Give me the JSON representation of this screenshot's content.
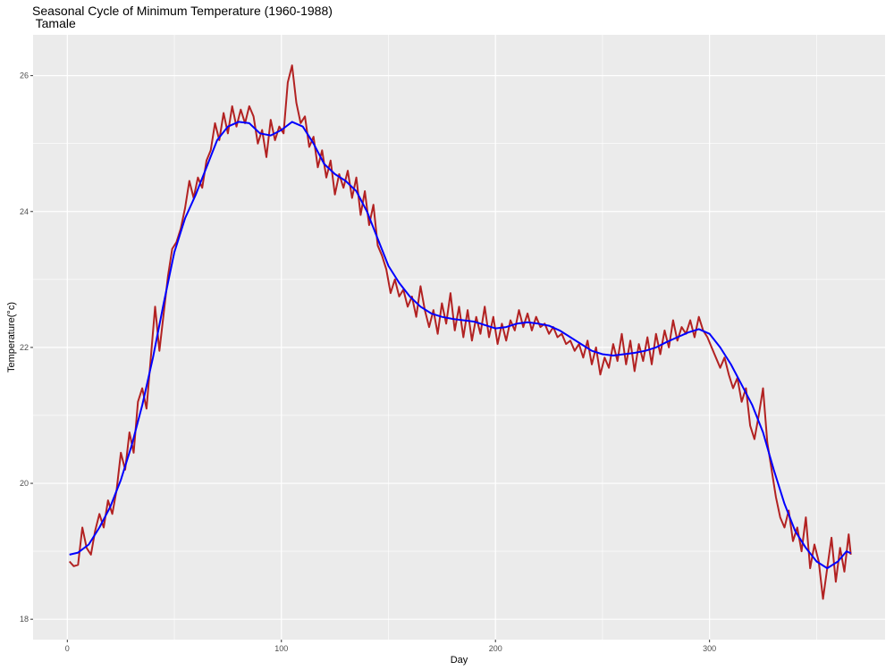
{
  "chart_data": {
    "type": "line",
    "title": "Seasonal Cycle of Minimum Temperature (1960-1988)",
    "subtitle": " Tamale",
    "xlabel": "Day",
    "ylabel": "Temperature(°c)",
    "xlim": [
      -16,
      382
    ],
    "ylim": [
      17.7,
      26.6
    ],
    "xticks": [
      0,
      100,
      200,
      300
    ],
    "yticks": [
      18,
      20,
      22,
      24,
      26
    ],
    "grid": true,
    "colors": {
      "panel": "#EBEBEB",
      "grid": "#FFFFFF",
      "daily": "#B22222",
      "smooth": "#0000FF"
    },
    "series": [
      {
        "key": "daily",
        "points": [
          [
            1,
            18.85
          ],
          [
            3,
            18.78
          ],
          [
            5,
            18.8
          ],
          [
            7,
            19.35
          ],
          [
            9,
            19.05
          ],
          [
            11,
            18.95
          ],
          [
            13,
            19.3
          ],
          [
            15,
            19.55
          ],
          [
            17,
            19.35
          ],
          [
            19,
            19.75
          ],
          [
            21,
            19.55
          ],
          [
            23,
            19.9
          ],
          [
            25,
            20.45
          ],
          [
            27,
            20.2
          ],
          [
            29,
            20.75
          ],
          [
            31,
            20.45
          ],
          [
            33,
            21.2
          ],
          [
            35,
            21.4
          ],
          [
            37,
            21.1
          ],
          [
            39,
            21.85
          ],
          [
            41,
            22.6
          ],
          [
            43,
            21.95
          ],
          [
            45,
            22.5
          ],
          [
            47,
            23.05
          ],
          [
            49,
            23.45
          ],
          [
            51,
            23.55
          ],
          [
            53,
            23.75
          ],
          [
            55,
            24.05
          ],
          [
            57,
            24.45
          ],
          [
            59,
            24.2
          ],
          [
            61,
            24.5
          ],
          [
            63,
            24.35
          ],
          [
            65,
            24.75
          ],
          [
            67,
            24.9
          ],
          [
            69,
            25.3
          ],
          [
            71,
            25.05
          ],
          [
            73,
            25.45
          ],
          [
            75,
            25.15
          ],
          [
            77,
            25.55
          ],
          [
            79,
            25.25
          ],
          [
            81,
            25.5
          ],
          [
            83,
            25.3
          ],
          [
            85,
            25.55
          ],
          [
            87,
            25.4
          ],
          [
            89,
            25.0
          ],
          [
            91,
            25.2
          ],
          [
            93,
            24.8
          ],
          [
            95,
            25.35
          ],
          [
            97,
            25.05
          ],
          [
            99,
            25.25
          ],
          [
            101,
            25.15
          ],
          [
            103,
            25.9
          ],
          [
            105,
            26.15
          ],
          [
            107,
            25.6
          ],
          [
            109,
            25.3
          ],
          [
            111,
            25.4
          ],
          [
            113,
            24.95
          ],
          [
            115,
            25.1
          ],
          [
            117,
            24.65
          ],
          [
            119,
            24.9
          ],
          [
            121,
            24.5
          ],
          [
            123,
            24.75
          ],
          [
            125,
            24.25
          ],
          [
            127,
            24.55
          ],
          [
            129,
            24.35
          ],
          [
            131,
            24.6
          ],
          [
            133,
            24.2
          ],
          [
            135,
            24.5
          ],
          [
            137,
            23.95
          ],
          [
            139,
            24.3
          ],
          [
            141,
            23.8
          ],
          [
            143,
            24.1
          ],
          [
            145,
            23.5
          ],
          [
            147,
            23.35
          ],
          [
            149,
            23.15
          ],
          [
            151,
            22.8
          ],
          [
            153,
            23.0
          ],
          [
            155,
            22.75
          ],
          [
            157,
            22.85
          ],
          [
            159,
            22.6
          ],
          [
            161,
            22.75
          ],
          [
            163,
            22.45
          ],
          [
            165,
            22.9
          ],
          [
            167,
            22.55
          ],
          [
            169,
            22.3
          ],
          [
            171,
            22.55
          ],
          [
            173,
            22.2
          ],
          [
            175,
            22.65
          ],
          [
            177,
            22.35
          ],
          [
            179,
            22.8
          ],
          [
            181,
            22.25
          ],
          [
            183,
            22.6
          ],
          [
            185,
            22.15
          ],
          [
            187,
            22.55
          ],
          [
            189,
            22.1
          ],
          [
            191,
            22.45
          ],
          [
            193,
            22.2
          ],
          [
            195,
            22.6
          ],
          [
            197,
            22.15
          ],
          [
            199,
            22.45
          ],
          [
            201,
            22.05
          ],
          [
            203,
            22.35
          ],
          [
            205,
            22.1
          ],
          [
            207,
            22.4
          ],
          [
            209,
            22.25
          ],
          [
            211,
            22.55
          ],
          [
            213,
            22.3
          ],
          [
            215,
            22.5
          ],
          [
            217,
            22.25
          ],
          [
            219,
            22.45
          ],
          [
            221,
            22.3
          ],
          [
            223,
            22.35
          ],
          [
            225,
            22.2
          ],
          [
            227,
            22.3
          ],
          [
            229,
            22.15
          ],
          [
            231,
            22.2
          ],
          [
            233,
            22.05
          ],
          [
            235,
            22.1
          ],
          [
            237,
            21.95
          ],
          [
            239,
            22.05
          ],
          [
            241,
            21.85
          ],
          [
            243,
            22.1
          ],
          [
            245,
            21.75
          ],
          [
            247,
            22.0
          ],
          [
            249,
            21.6
          ],
          [
            251,
            21.85
          ],
          [
            253,
            21.7
          ],
          [
            255,
            22.05
          ],
          [
            257,
            21.8
          ],
          [
            259,
            22.2
          ],
          [
            261,
            21.75
          ],
          [
            263,
            22.1
          ],
          [
            265,
            21.65
          ],
          [
            267,
            22.05
          ],
          [
            269,
            21.8
          ],
          [
            271,
            22.15
          ],
          [
            273,
            21.75
          ],
          [
            275,
            22.2
          ],
          [
            277,
            21.9
          ],
          [
            279,
            22.25
          ],
          [
            281,
            22.0
          ],
          [
            283,
            22.4
          ],
          [
            285,
            22.1
          ],
          [
            287,
            22.3
          ],
          [
            289,
            22.2
          ],
          [
            291,
            22.4
          ],
          [
            293,
            22.15
          ],
          [
            295,
            22.45
          ],
          [
            297,
            22.25
          ],
          [
            299,
            22.15
          ],
          [
            301,
            22.0
          ],
          [
            303,
            21.85
          ],
          [
            305,
            21.7
          ],
          [
            307,
            21.85
          ],
          [
            309,
            21.6
          ],
          [
            311,
            21.4
          ],
          [
            313,
            21.55
          ],
          [
            315,
            21.2
          ],
          [
            317,
            21.4
          ],
          [
            319,
            20.85
          ],
          [
            321,
            20.65
          ],
          [
            323,
            21.0
          ],
          [
            325,
            21.4
          ],
          [
            327,
            20.6
          ],
          [
            329,
            20.2
          ],
          [
            331,
            19.8
          ],
          [
            333,
            19.5
          ],
          [
            335,
            19.35
          ],
          [
            337,
            19.6
          ],
          [
            339,
            19.15
          ],
          [
            341,
            19.35
          ],
          [
            343,
            19.0
          ],
          [
            345,
            19.5
          ],
          [
            347,
            18.75
          ],
          [
            349,
            19.1
          ],
          [
            351,
            18.85
          ],
          [
            353,
            18.3
          ],
          [
            355,
            18.75
          ],
          [
            357,
            19.2
          ],
          [
            359,
            18.55
          ],
          [
            361,
            19.05
          ],
          [
            363,
            18.7
          ],
          [
            365,
            19.25
          ],
          [
            366,
            18.95
          ]
        ]
      },
      {
        "key": "smooth",
        "points": [
          [
            1,
            18.95
          ],
          [
            5,
            18.98
          ],
          [
            10,
            19.1
          ],
          [
            15,
            19.35
          ],
          [
            20,
            19.65
          ],
          [
            25,
            20.05
          ],
          [
            30,
            20.55
          ],
          [
            35,
            21.15
          ],
          [
            40,
            21.85
          ],
          [
            45,
            22.65
          ],
          [
            50,
            23.4
          ],
          [
            55,
            23.9
          ],
          [
            60,
            24.25
          ],
          [
            65,
            24.65
          ],
          [
            70,
            25.05
          ],
          [
            75,
            25.25
          ],
          [
            80,
            25.32
          ],
          [
            85,
            25.3
          ],
          [
            90,
            25.15
          ],
          [
            95,
            25.12
          ],
          [
            100,
            25.2
          ],
          [
            105,
            25.32
          ],
          [
            110,
            25.25
          ],
          [
            115,
            25.0
          ],
          [
            120,
            24.7
          ],
          [
            125,
            24.55
          ],
          [
            130,
            24.45
          ],
          [
            135,
            24.3
          ],
          [
            140,
            24.0
          ],
          [
            145,
            23.6
          ],
          [
            150,
            23.2
          ],
          [
            155,
            22.95
          ],
          [
            160,
            22.75
          ],
          [
            165,
            22.6
          ],
          [
            170,
            22.5
          ],
          [
            175,
            22.45
          ],
          [
            180,
            22.42
          ],
          [
            185,
            22.4
          ],
          [
            190,
            22.38
          ],
          [
            195,
            22.33
          ],
          [
            200,
            22.28
          ],
          [
            205,
            22.3
          ],
          [
            210,
            22.35
          ],
          [
            215,
            22.37
          ],
          [
            220,
            22.35
          ],
          [
            225,
            22.32
          ],
          [
            230,
            22.25
          ],
          [
            235,
            22.15
          ],
          [
            240,
            22.05
          ],
          [
            245,
            21.95
          ],
          [
            250,
            21.9
          ],
          [
            255,
            21.88
          ],
          [
            260,
            21.9
          ],
          [
            265,
            21.92
          ],
          [
            270,
            21.95
          ],
          [
            275,
            22.0
          ],
          [
            280,
            22.08
          ],
          [
            285,
            22.15
          ],
          [
            290,
            22.22
          ],
          [
            295,
            22.27
          ],
          [
            300,
            22.2
          ],
          [
            305,
            22.0
          ],
          [
            310,
            21.75
          ],
          [
            315,
            21.45
          ],
          [
            320,
            21.15
          ],
          [
            325,
            20.75
          ],
          [
            330,
            20.2
          ],
          [
            335,
            19.7
          ],
          [
            340,
            19.3
          ],
          [
            345,
            19.05
          ],
          [
            350,
            18.85
          ],
          [
            355,
            18.75
          ],
          [
            360,
            18.85
          ],
          [
            364,
            19.0
          ],
          [
            366,
            18.97
          ]
        ]
      }
    ]
  }
}
